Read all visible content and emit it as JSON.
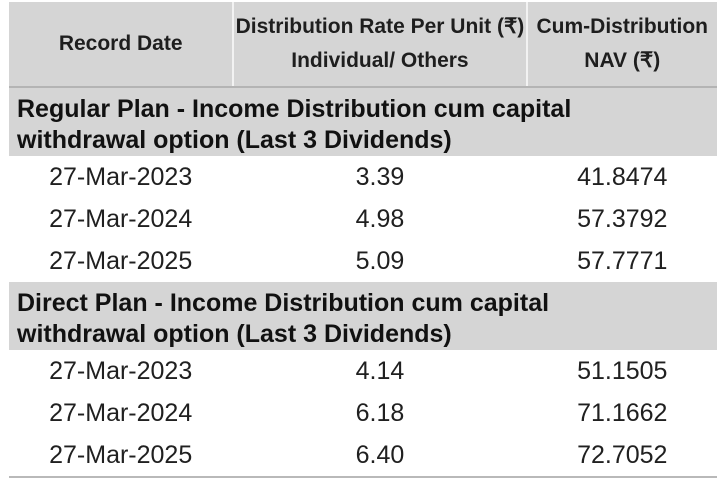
{
  "header": {
    "record_date": "Record Date",
    "rate_line1": "Distribution Rate Per Unit  (₹)",
    "rate_line2": "Individual/ Others",
    "nav_line1": "Cum-Distribution",
    "nav_line2": "NAV (₹)"
  },
  "sections": [
    {
      "title_line1": "Regular Plan - Income Distribution cum capital",
      "title_line2": "withdrawal option (Last 3 Dividends)",
      "rows": [
        {
          "date": "27-Mar-2023",
          "rate": "3.39",
          "nav": "41.8474"
        },
        {
          "date": "27-Mar-2024",
          "rate": "4.98",
          "nav": "57.3792"
        },
        {
          "date": "27-Mar-2025",
          "rate": "5.09",
          "nav": "57.7771"
        }
      ]
    },
    {
      "title_line1": "Direct Plan - Income Distribution cum capital",
      "title_line2": "withdrawal option (Last 3 Dividends)",
      "rows": [
        {
          "date": "27-Mar-2023",
          "rate": "4.14",
          "nav": "51.1505"
        },
        {
          "date": "27-Mar-2024",
          "rate": "6.18",
          "nav": "71.1662"
        },
        {
          "date": "27-Mar-2025",
          "rate": "6.40",
          "nav": "72.7052"
        }
      ]
    }
  ]
}
